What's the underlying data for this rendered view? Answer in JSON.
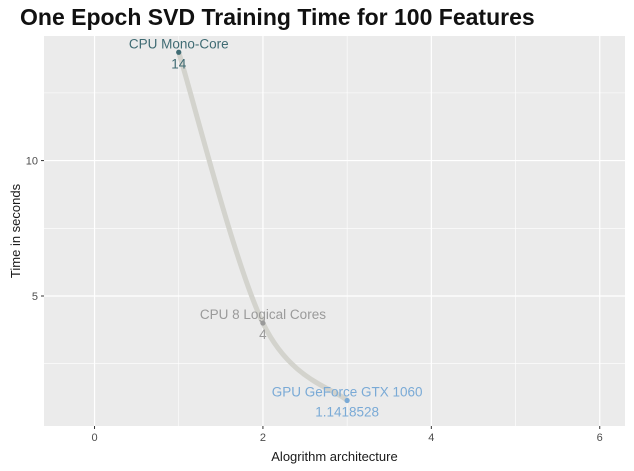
{
  "chart_data": {
    "type": "line",
    "title": "One Epoch SVD Training Time for 100 Features",
    "xlabel": "Alogrithm architecture",
    "ylabel": "Time in seconds",
    "xlim": [
      -0.6,
      6.3
    ],
    "ylim": [
      0.2,
      14.6
    ],
    "x_ticks": [
      0,
      2,
      4,
      6
    ],
    "y_ticks": [
      5,
      10
    ],
    "grid": true,
    "legend": "none",
    "points": [
      {
        "x": 1,
        "y": 14,
        "name": "CPU Mono-Core",
        "value_label": "14",
        "color": "#3f6b73"
      },
      {
        "x": 2,
        "y": 4,
        "name": "CPU 8 Logical Cores",
        "value_label": "4",
        "color": "#9a9a9a"
      },
      {
        "x": 3,
        "y": 1.1418528,
        "name": "GPU GeForce GTX 1060",
        "value_label": "1.1418528",
        "color": "#7aaad6"
      }
    ],
    "colors": {
      "panel": "#ebebeb",
      "grid": "#ffffff",
      "line": "#d3d3cd"
    }
  }
}
